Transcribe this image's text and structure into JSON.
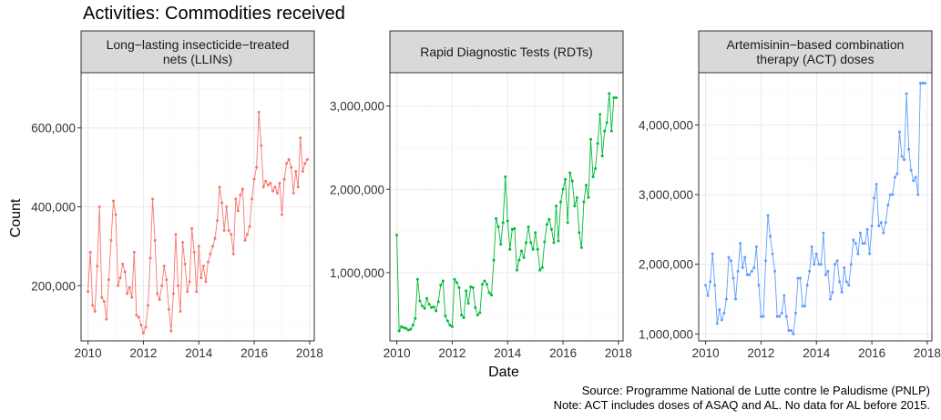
{
  "title": "Activities: Commodities received",
  "notes": {
    "source": "Source: Programme National de Lutte contre le Paludisme (PNLP)",
    "note": "Note: ACT includes doses of ASAQ and AL. No data for AL before 2015."
  },
  "chart_data": {
    "type": "line",
    "xlabel": "Date",
    "ylabel": "Count",
    "x_ticks": [
      "2010",
      "2012",
      "2014",
      "2016",
      "2018"
    ],
    "xlim": [
      "2009-10",
      "2018-03"
    ],
    "grid": true,
    "facets": [
      {
        "name": "Long-lasting insecticide-treated nets (LLINs)",
        "label_lines": [
          "Long−lasting insecticide−treated",
          "nets (LLINs)"
        ],
        "color": "#F8766D",
        "ylim": [
          60000,
          740000
        ],
        "y_ticks": [
          200000,
          400000,
          600000
        ],
        "y_tick_labels": [
          "200,000",
          "400,000",
          "600,000"
        ],
        "x": [
          "2010-01",
          "2010-02",
          "2010-03",
          "2010-04",
          "2010-05",
          "2010-06",
          "2010-07",
          "2010-08",
          "2010-09",
          "2010-10",
          "2010-11",
          "2010-12",
          "2011-01",
          "2011-02",
          "2011-03",
          "2011-04",
          "2011-05",
          "2011-06",
          "2011-07",
          "2011-08",
          "2011-09",
          "2011-10",
          "2011-11",
          "2011-12",
          "2012-01",
          "2012-02",
          "2012-03",
          "2012-04",
          "2012-05",
          "2012-06",
          "2012-07",
          "2012-08",
          "2012-09",
          "2012-10",
          "2012-11",
          "2012-12",
          "2013-01",
          "2013-02",
          "2013-03",
          "2013-04",
          "2013-05",
          "2013-06",
          "2013-07",
          "2013-08",
          "2013-09",
          "2013-10",
          "2013-11",
          "2013-12",
          "2014-01",
          "2014-02",
          "2014-03",
          "2014-04",
          "2014-05",
          "2014-06",
          "2014-07",
          "2014-08",
          "2014-09",
          "2014-10",
          "2014-11",
          "2014-12",
          "2015-01",
          "2015-02",
          "2015-03",
          "2015-04",
          "2015-05",
          "2015-06",
          "2015-07",
          "2015-08",
          "2015-09",
          "2015-10",
          "2015-11",
          "2015-12",
          "2016-01",
          "2016-02",
          "2016-03",
          "2016-04",
          "2016-05",
          "2016-06",
          "2016-07",
          "2016-08",
          "2016-09",
          "2016-10",
          "2016-11",
          "2016-12",
          "2017-01",
          "2017-02",
          "2017-03",
          "2017-04",
          "2017-05",
          "2017-06",
          "2017-07",
          "2017-08",
          "2017-09",
          "2017-10",
          "2017-11",
          "2017-12"
        ],
        "values": [
          185000,
          285000,
          150000,
          135000,
          250000,
          400000,
          170000,
          160000,
          115000,
          215000,
          315000,
          415000,
          380000,
          200000,
          220000,
          255000,
          235000,
          180000,
          195000,
          170000,
          285000,
          125000,
          120000,
          100000,
          80000,
          95000,
          150000,
          270000,
          420000,
          315000,
          180000,
          165000,
          200000,
          250000,
          215000,
          140000,
          85000,
          180000,
          330000,
          200000,
          135000,
          310000,
          255000,
          185000,
          210000,
          345000,
          285000,
          185000,
          300000,
          220000,
          250000,
          210000,
          260000,
          280000,
          300000,
          320000,
          365000,
          450000,
          410000,
          340000,
          400000,
          340000,
          330000,
          280000,
          420000,
          390000,
          430000,
          445000,
          315000,
          330000,
          350000,
          420000,
          470000,
          500000,
          640000,
          555000,
          450000,
          465000,
          455000,
          460000,
          440000,
          450000,
          435000,
          460000,
          380000,
          470000,
          510000,
          520000,
          500000,
          435000,
          490000,
          450000,
          575000,
          490000,
          510000,
          520000
        ]
      },
      {
        "name": "Rapid Diagnostic Tests (RDTs)",
        "label_lines": [
          "Rapid Diagnostic Tests (RDTs)"
        ],
        "color": "#00BA38",
        "ylim": [
          180000,
          3400000
        ],
        "y_ticks": [
          1000000,
          2000000,
          3000000
        ],
        "y_tick_labels": [
          "1,000,000",
          "2,000,000",
          "3,000,000"
        ],
        "x": [
          "2010-01",
          "2010-02",
          "2010-03",
          "2010-04",
          "2010-05",
          "2010-06",
          "2010-07",
          "2010-08",
          "2010-09",
          "2010-10",
          "2010-11",
          "2010-12",
          "2011-01",
          "2011-02",
          "2011-03",
          "2011-04",
          "2011-05",
          "2011-06",
          "2011-07",
          "2011-08",
          "2011-09",
          "2011-10",
          "2011-11",
          "2011-12",
          "2012-01",
          "2012-02",
          "2012-03",
          "2012-04",
          "2012-05",
          "2012-06",
          "2012-07",
          "2012-08",
          "2012-09",
          "2012-10",
          "2012-11",
          "2012-12",
          "2013-01",
          "2013-02",
          "2013-03",
          "2013-04",
          "2013-05",
          "2013-06",
          "2013-07",
          "2013-08",
          "2013-09",
          "2013-10",
          "2013-11",
          "2013-12",
          "2014-01",
          "2014-02",
          "2014-03",
          "2014-04",
          "2014-05",
          "2014-06",
          "2014-07",
          "2014-08",
          "2014-09",
          "2014-10",
          "2014-11",
          "2014-12",
          "2015-01",
          "2015-02",
          "2015-03",
          "2015-04",
          "2015-05",
          "2015-06",
          "2015-07",
          "2015-08",
          "2015-09",
          "2015-10",
          "2015-11",
          "2015-12",
          "2016-01",
          "2016-02",
          "2016-03",
          "2016-04",
          "2016-05",
          "2016-06",
          "2016-07",
          "2016-08",
          "2016-09",
          "2016-10",
          "2016-11",
          "2016-12",
          "2017-01",
          "2017-02",
          "2017-03",
          "2017-04",
          "2017-05",
          "2017-06",
          "2017-07",
          "2017-08",
          "2017-09",
          "2017-10",
          "2017-11",
          "2017-12"
        ],
        "values": [
          1450000,
          300000,
          350000,
          340000,
          330000,
          310000,
          320000,
          370000,
          450000,
          920000,
          660000,
          600000,
          570000,
          690000,
          620000,
          580000,
          590000,
          540000,
          650000,
          850000,
          900000,
          480000,
          420000,
          370000,
          350000,
          920000,
          880000,
          820000,
          490000,
          460000,
          780000,
          630000,
          830000,
          820000,
          580000,
          490000,
          520000,
          860000,
          900000,
          860000,
          760000,
          730000,
          1150000,
          1650000,
          1550000,
          1340000,
          1600000,
          2150000,
          1620000,
          1280000,
          1520000,
          1530000,
          1030000,
          1150000,
          1260000,
          1180000,
          1360000,
          1550000,
          1360000,
          1280000,
          1480000,
          1280000,
          1030000,
          1060000,
          1370000,
          1580000,
          1640000,
          1520000,
          1360000,
          1800000,
          1380000,
          1850000,
          2000000,
          2120000,
          1600000,
          2200000,
          2100000,
          1800000,
          1900000,
          1480000,
          1300000,
          1850000,
          2050000,
          1900000,
          2600000,
          2150000,
          2250000,
          2550000,
          2900000,
          2400000,
          2700000,
          2800000,
          3150000,
          2700000,
          3100000,
          3100000
        ]
      },
      {
        "name": "Artemisinin-based combination therapy (ACT) doses",
        "label_lines": [
          "Artemisinin−based combination",
          "therapy (ACT) doses"
        ],
        "color": "#619CFF",
        "ylim": [
          900000,
          4750000
        ],
        "y_ticks": [
          1000000,
          2000000,
          3000000,
          4000000
        ],
        "y_tick_labels": [
          "1,000,000",
          "2,000,000",
          "3,000,000",
          "4,000,000"
        ],
        "x": [
          "2010-01",
          "2010-02",
          "2010-03",
          "2010-04",
          "2010-05",
          "2010-06",
          "2010-07",
          "2010-08",
          "2010-09",
          "2010-10",
          "2010-11",
          "2010-12",
          "2011-01",
          "2011-02",
          "2011-03",
          "2011-04",
          "2011-05",
          "2011-06",
          "2011-07",
          "2011-08",
          "2011-09",
          "2011-10",
          "2011-11",
          "2011-12",
          "2012-01",
          "2012-02",
          "2012-03",
          "2012-04",
          "2012-05",
          "2012-06",
          "2012-07",
          "2012-08",
          "2012-09",
          "2012-10",
          "2012-11",
          "2012-12",
          "2013-01",
          "2013-02",
          "2013-03",
          "2013-04",
          "2013-05",
          "2013-06",
          "2013-07",
          "2013-08",
          "2013-09",
          "2013-10",
          "2013-11",
          "2013-12",
          "2014-01",
          "2014-02",
          "2014-03",
          "2014-04",
          "2014-05",
          "2014-06",
          "2014-07",
          "2014-08",
          "2014-09",
          "2014-10",
          "2014-11",
          "2014-12",
          "2015-01",
          "2015-02",
          "2015-03",
          "2015-04",
          "2015-05",
          "2015-06",
          "2015-07",
          "2015-08",
          "2015-09",
          "2015-10",
          "2015-11",
          "2015-12",
          "2016-01",
          "2016-02",
          "2016-03",
          "2016-04",
          "2016-05",
          "2016-06",
          "2016-07",
          "2016-08",
          "2016-09",
          "2016-10",
          "2016-11",
          "2016-12",
          "2017-01",
          "2017-02",
          "2017-03",
          "2017-04",
          "2017-05",
          "2017-06",
          "2017-07",
          "2017-08",
          "2017-09",
          "2017-10",
          "2017-11",
          "2017-12"
        ],
        "values": [
          1700000,
          1550000,
          1750000,
          2150000,
          1700000,
          1150000,
          1350000,
          1200000,
          1300000,
          1500000,
          2100000,
          2050000,
          1800000,
          1500000,
          1900000,
          2300000,
          1950000,
          2100000,
          1850000,
          1850000,
          1900000,
          1950000,
          2250000,
          1700000,
          1250000,
          1250000,
          2050000,
          2700000,
          2400000,
          2150000,
          1900000,
          1250000,
          1250000,
          1300000,
          1550000,
          1250000,
          1050000,
          1050000,
          1000000,
          1300000,
          1800000,
          1800000,
          1400000,
          1400000,
          1700000,
          1900000,
          2250000,
          2000000,
          2150000,
          2000000,
          2000000,
          2450000,
          1850000,
          1900000,
          1500000,
          1600000,
          2000000,
          2050000,
          1750000,
          1600000,
          1950000,
          1750000,
          1700000,
          2000000,
          2350000,
          2300000,
          2150000,
          2450000,
          2300000,
          2300000,
          2500000,
          2150000,
          2550000,
          2950000,
          3150000,
          2550000,
          2600000,
          2450000,
          2600000,
          2850000,
          3000000,
          3000000,
          3250000,
          3300000,
          3900000,
          3550000,
          3500000,
          4450000,
          3650000,
          3350000,
          3200000,
          3250000,
          3000000,
          4600000,
          4600000,
          4600000
        ]
      }
    ]
  }
}
